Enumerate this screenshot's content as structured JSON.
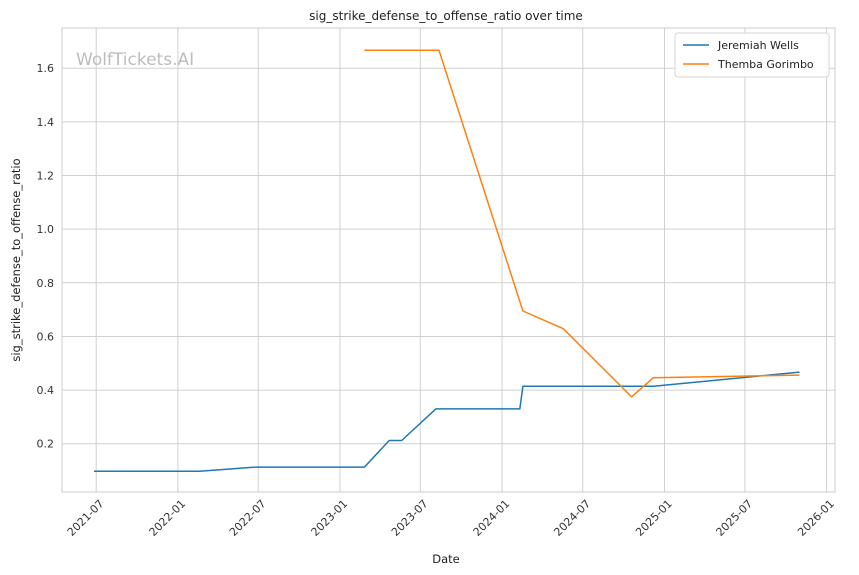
{
  "chart_data": {
    "type": "line",
    "title": "sig_strike_defense_to_offense_ratio over time",
    "xlabel": "Date",
    "ylabel": "sig_strike_defense_to_offense_ratio",
    "watermark": "WolfTickets.AI",
    "xlim": [
      "2021-04-15",
      "2026-01-20"
    ],
    "ylim": [
      0.02,
      1.75
    ],
    "x_ticks": [
      "2021-07",
      "2022-01",
      "2022-07",
      "2023-01",
      "2023-07",
      "2024-01",
      "2024-07",
      "2025-01",
      "2025-07",
      "2026-01"
    ],
    "x_tick_dates": [
      "2021-07-01",
      "2022-01-01",
      "2022-07-01",
      "2023-01-01",
      "2023-07-01",
      "2024-01-01",
      "2024-07-01",
      "2025-01-01",
      "2025-07-01",
      "2026-01-01"
    ],
    "y_ticks": [
      0.2,
      0.4,
      0.6,
      0.8,
      1.0,
      1.2,
      1.4,
      1.6
    ],
    "y_tick_labels": [
      "0.2",
      "0.4",
      "0.6",
      "0.8",
      "1.0",
      "1.2",
      "1.4",
      "1.6"
    ],
    "grid": true,
    "legend_position": "top-right",
    "series": [
      {
        "name": "Jeremiah Wells",
        "color": "#1f77b4",
        "points": [
          {
            "x": "2021-06-26",
            "y": 0.097
          },
          {
            "x": "2022-02-19",
            "y": 0.097
          },
          {
            "x": "2022-06-25",
            "y": 0.113
          },
          {
            "x": "2023-02-25",
            "y": 0.113
          },
          {
            "x": "2023-04-22",
            "y": 0.212
          },
          {
            "x": "2023-05-20",
            "y": 0.212
          },
          {
            "x": "2023-08-05",
            "y": 0.33
          },
          {
            "x": "2024-02-10",
            "y": 0.33
          },
          {
            "x": "2024-02-17",
            "y": 0.414
          },
          {
            "x": "2024-12-07",
            "y": 0.414
          },
          {
            "x": "2025-11-01",
            "y": 0.467
          }
        ]
      },
      {
        "name": "Themba Gorimbo",
        "color": "#ff7f0e",
        "points": [
          {
            "x": "2023-02-25",
            "y": 1.667
          },
          {
            "x": "2023-08-12",
            "y": 1.667
          },
          {
            "x": "2024-02-17",
            "y": 0.695
          },
          {
            "x": "2024-05-18",
            "y": 0.629
          },
          {
            "x": "2024-10-19",
            "y": 0.375
          },
          {
            "x": "2024-12-07",
            "y": 0.446
          },
          {
            "x": "2025-11-01",
            "y": 0.456
          }
        ]
      }
    ]
  }
}
